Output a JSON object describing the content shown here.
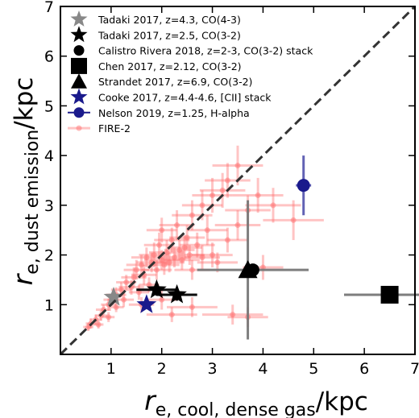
{
  "chart_data": {
    "type": "scatter",
    "title": "",
    "xlabel": {
      "main": "r",
      "sub": "e, cool, dense gas",
      "unit": "/kpc"
    },
    "ylabel": {
      "main": "r",
      "sub": "e, dust emission",
      "unit": "/kpc"
    },
    "xlim": [
      0,
      7
    ],
    "ylim": [
      0,
      7
    ],
    "x_ticks": [
      1,
      2,
      3,
      4,
      5,
      6,
      7
    ],
    "y_ticks": [
      1,
      2,
      3,
      4,
      5,
      6,
      7
    ],
    "legend_position": "top-left",
    "one_to_one_line": true,
    "series": [
      {
        "name": "Tadaki 2017, z=4.3, CO(4-3)",
        "marker": "star",
        "color": "#888888",
        "points": [
          {
            "x": 1.05,
            "y": 1.15
          }
        ]
      },
      {
        "name": "Tadaki 2017, z=2.5, CO(3-2)",
        "marker": "star",
        "color": "#000000",
        "points": [
          {
            "x": 1.9,
            "y": 1.3,
            "xerr": 0.4,
            "yerr": 0.12
          },
          {
            "x": 2.3,
            "y": 1.2,
            "xerr": 0.4,
            "yerr": 0.12
          }
        ]
      },
      {
        "name": "Calistro Rivera 2018, z=2-3, CO(3-2) stack",
        "marker": "circle",
        "color": "#000000",
        "points": [
          {
            "x": 3.8,
            "y": 1.7,
            "xerr": 1.1
          }
        ]
      },
      {
        "name": "Chen 2017, z=2.12, CO(3-2)",
        "marker": "square",
        "color": "#000000",
        "points": [
          {
            "x": 6.5,
            "y": 1.2,
            "xerr": 0.9
          }
        ]
      },
      {
        "name": "Strandet 2017, z=6.9, CO(3-2)",
        "marker": "triangle",
        "color": "#000000",
        "points": [
          {
            "x": 3.7,
            "y": 1.7,
            "yerr": 1.4,
            "xerr": 0.05
          }
        ]
      },
      {
        "name": "Cooke 2017, z=4.4-4.6, [CII] stack",
        "marker": "star",
        "color": "#1a1a8c",
        "points": [
          {
            "x": 1.7,
            "y": 1.0
          }
        ]
      },
      {
        "name": "Nelson 2019, z=1.25, H-alpha",
        "marker": "circle",
        "color": "#1a1a8c",
        "points": [
          {
            "x": 4.8,
            "y": 3.4,
            "yerr": 0.6,
            "xerr": 0.15
          }
        ]
      },
      {
        "name": "FIRE-2",
        "marker": "circle",
        "color": "#ff6b6b",
        "points": [
          {
            "x": 0.55,
            "y": 0.55,
            "xerr": 0.1,
            "yerr": 0.08
          },
          {
            "x": 0.6,
            "y": 0.62,
            "xerr": 0.1,
            "yerr": 0.1
          },
          {
            "x": 0.7,
            "y": 0.7,
            "xerr": 0.12,
            "yerr": 0.1
          },
          {
            "x": 0.75,
            "y": 0.6,
            "xerr": 0.1,
            "yerr": 0.08
          },
          {
            "x": 0.8,
            "y": 0.78,
            "xerr": 0.12,
            "yerr": 0.1
          },
          {
            "x": 0.85,
            "y": 0.9,
            "xerr": 0.15,
            "yerr": 0.1
          },
          {
            "x": 0.95,
            "y": 0.75,
            "xerr": 0.12,
            "yerr": 0.1
          },
          {
            "x": 0.95,
            "y": 1.0,
            "xerr": 0.15,
            "yerr": 0.12
          },
          {
            "x": 1.0,
            "y": 1.1,
            "xerr": 0.15,
            "yerr": 0.12
          },
          {
            "x": 1.1,
            "y": 0.95,
            "xerr": 0.15,
            "yerr": 0.1
          },
          {
            "x": 1.1,
            "y": 1.2,
            "xerr": 0.2,
            "yerr": 0.15
          },
          {
            "x": 1.2,
            "y": 1.3,
            "xerr": 0.2,
            "yerr": 0.15
          },
          {
            "x": 1.25,
            "y": 1.1,
            "xerr": 0.2,
            "yerr": 0.15
          },
          {
            "x": 1.3,
            "y": 1.45,
            "xerr": 0.2,
            "yerr": 0.15
          },
          {
            "x": 1.4,
            "y": 1.35,
            "xerr": 0.25,
            "yerr": 0.15
          },
          {
            "x": 1.45,
            "y": 1.55,
            "xerr": 0.25,
            "yerr": 0.2
          },
          {
            "x": 1.5,
            "y": 1.7,
            "xerr": 0.25,
            "yerr": 0.2
          },
          {
            "x": 1.55,
            "y": 1.25,
            "xerr": 0.2,
            "yerr": 0.15
          },
          {
            "x": 1.6,
            "y": 1.8,
            "xerr": 0.3,
            "yerr": 0.2
          },
          {
            "x": 1.65,
            "y": 1.6,
            "xerr": 0.25,
            "yerr": 0.2
          },
          {
            "x": 1.7,
            "y": 1.95,
            "xerr": 0.3,
            "yerr": 0.2
          },
          {
            "x": 1.75,
            "y": 1.4,
            "xerr": 0.2,
            "yerr": 0.15
          },
          {
            "x": 1.8,
            "y": 1.85,
            "xerr": 0.3,
            "yerr": 0.2
          },
          {
            "x": 1.85,
            "y": 2.0,
            "xerr": 0.3,
            "yerr": 0.25
          },
          {
            "x": 1.9,
            "y": 1.7,
            "xerr": 0.3,
            "yerr": 0.2
          },
          {
            "x": 1.95,
            "y": 2.2,
            "xerr": 0.3,
            "yerr": 0.25
          },
          {
            "x": 2.0,
            "y": 1.9,
            "xerr": 0.35,
            "yerr": 0.2
          },
          {
            "x": 2.0,
            "y": 2.5,
            "xerr": 0.3,
            "yerr": 0.25
          },
          {
            "x": 2.05,
            "y": 1.8,
            "xerr": 0.3,
            "yerr": 0.2
          },
          {
            "x": 2.1,
            "y": 2.05,
            "xerr": 0.35,
            "yerr": 0.25
          },
          {
            "x": 2.15,
            "y": 1.85,
            "xerr": 0.3,
            "yerr": 0.2
          },
          {
            "x": 2.2,
            "y": 2.3,
            "xerr": 0.35,
            "yerr": 0.25
          },
          {
            "x": 2.25,
            "y": 1.95,
            "xerr": 0.3,
            "yerr": 0.2
          },
          {
            "x": 2.3,
            "y": 2.6,
            "xerr": 0.35,
            "yerr": 0.3
          },
          {
            "x": 2.35,
            "y": 2.1,
            "xerr": 0.3,
            "yerr": 0.2
          },
          {
            "x": 2.4,
            "y": 1.9,
            "xerr": 0.35,
            "yerr": 0.2
          },
          {
            "x": 2.5,
            "y": 2.35,
            "xerr": 0.35,
            "yerr": 0.25
          },
          {
            "x": 2.55,
            "y": 2.0,
            "xerr": 0.3,
            "yerr": 0.2
          },
          {
            "x": 2.6,
            "y": 2.8,
            "xerr": 0.4,
            "yerr": 0.3
          },
          {
            "x": 2.7,
            "y": 2.2,
            "xerr": 0.35,
            "yerr": 0.25
          },
          {
            "x": 2.8,
            "y": 3.0,
            "xerr": 0.4,
            "yerr": 0.3
          },
          {
            "x": 2.9,
            "y": 2.5,
            "xerr": 0.4,
            "yerr": 0.3
          },
          {
            "x": 3.0,
            "y": 3.2,
            "xerr": 0.4,
            "yerr": 0.35
          },
          {
            "x": 3.2,
            "y": 3.3,
            "xerr": 0.45,
            "yerr": 0.35
          },
          {
            "x": 3.3,
            "y": 3.5,
            "xerr": 0.45,
            "yerr": 0.35
          },
          {
            "x": 3.5,
            "y": 3.8,
            "xerr": 0.5,
            "yerr": 0.4
          },
          {
            "x": 3.0,
            "y": 2.0,
            "xerr": 0.4,
            "yerr": 0.25
          },
          {
            "x": 3.1,
            "y": 1.85,
            "xerr": 0.4,
            "yerr": 0.2
          },
          {
            "x": 2.6,
            "y": 1.7,
            "xerr": 0.35,
            "yerr": 0.2
          },
          {
            "x": 3.3,
            "y": 2.3,
            "xerr": 0.4,
            "yerr": 0.25
          },
          {
            "x": 3.5,
            "y": 2.6,
            "xerr": 0.45,
            "yerr": 0.3
          },
          {
            "x": 3.7,
            "y": 2.9,
            "xerr": 0.45,
            "yerr": 0.3
          },
          {
            "x": 3.9,
            "y": 3.2,
            "xerr": 0.5,
            "yerr": 0.35
          },
          {
            "x": 4.2,
            "y": 3.0,
            "xerr": 0.55,
            "yerr": 0.35
          },
          {
            "x": 4.6,
            "y": 2.7,
            "xerr": 0.6,
            "yerr": 0.4
          },
          {
            "x": 2.2,
            "y": 0.8,
            "xerr": 0.5,
            "yerr": 0.15
          },
          {
            "x": 2.6,
            "y": 0.95,
            "xerr": 0.5,
            "yerr": 0.2
          },
          {
            "x": 3.4,
            "y": 0.8,
            "xerr": 0.6,
            "yerr": 0.2
          },
          {
            "x": 3.7,
            "y": 0.75,
            "xerr": 0.4,
            "yerr": 0.2
          },
          {
            "x": 2.0,
            "y": 1.1,
            "xerr": 0.3,
            "yerr": 0.2
          },
          {
            "x": 1.6,
            "y": 1.0,
            "xerr": 0.25,
            "yerr": 0.15
          },
          {
            "x": 4.0,
            "y": 1.75,
            "xerr": 0.4,
            "yerr": 0.25
          },
          {
            "x": 2.8,
            "y": 1.95,
            "xerr": 0.35,
            "yerr": 0.25
          },
          {
            "x": 2.45,
            "y": 2.15,
            "xerr": 0.35,
            "yerr": 0.25
          }
        ]
      }
    ]
  }
}
